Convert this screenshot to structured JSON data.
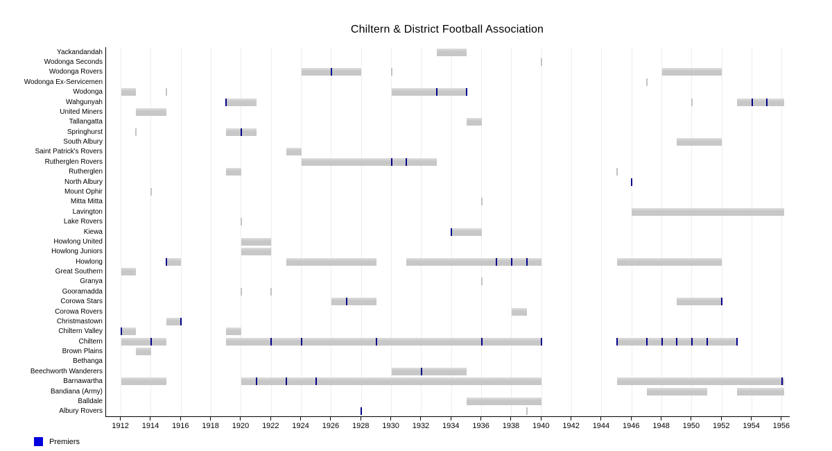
{
  "title": "Chiltern & District Football Association",
  "legend": {
    "label": "Premiers",
    "swatch_color": "#0000dd"
  },
  "colors": {
    "bar": "#c7c7c7",
    "bar_highlight": "#dedede",
    "premier_tick": "#00008b",
    "stint_tick": "#b9b9b9",
    "gridline": "#ededed",
    "axis": "#000000",
    "background": "#ffffff"
  },
  "chart_data": {
    "type": "gantt",
    "title": "Chiltern & District Football Association",
    "xlabel": "",
    "ylabel": "",
    "grid": "vertical-light",
    "legend_position": "bottom-left",
    "legend_entries": [
      "Premiers"
    ],
    "x_range": [
      1911,
      1956.5
    ],
    "x_ticks": [
      1912,
      1914,
      1916,
      1918,
      1920,
      1922,
      1924,
      1926,
      1928,
      1930,
      1932,
      1934,
      1936,
      1938,
      1940,
      1942,
      1944,
      1946,
      1948,
      1950,
      1952,
      1954,
      1956
    ],
    "teams": [
      {
        "name": "Yackandandah",
        "bars": [
          [
            1933,
            1935
          ]
        ],
        "premiers": [],
        "stints": []
      },
      {
        "name": "Wodonga Seconds",
        "bars": [],
        "premiers": [],
        "stints": [
          1940
        ]
      },
      {
        "name": "Wodonga Rovers",
        "bars": [
          [
            1924,
            1928
          ],
          [
            1948,
            1952
          ]
        ],
        "premiers": [
          1926
        ],
        "stints": [
          1930
        ]
      },
      {
        "name": "Wodonga Ex-Servicemen",
        "bars": [],
        "premiers": [],
        "stints": [
          1947
        ]
      },
      {
        "name": "Wodonga",
        "bars": [
          [
            1912,
            1913
          ],
          [
            1930,
            1935
          ]
        ],
        "premiers": [
          1933,
          1935
        ],
        "stints": [
          1915
        ]
      },
      {
        "name": "Wahgunyah",
        "bars": [
          [
            1919,
            1921
          ],
          [
            1953,
            1956.15
          ]
        ],
        "premiers": [
          1919,
          1954,
          1955
        ],
        "stints": [
          1950
        ]
      },
      {
        "name": "United Miners",
        "bars": [
          [
            1913,
            1915
          ]
        ],
        "premiers": [],
        "stints": []
      },
      {
        "name": "Tallangatta",
        "bars": [
          [
            1935,
            1936
          ]
        ],
        "premiers": [],
        "stints": []
      },
      {
        "name": "Springhurst",
        "bars": [
          [
            1919,
            1921
          ]
        ],
        "premiers": [
          1920
        ],
        "stints": [
          1913
        ]
      },
      {
        "name": "South Albury",
        "bars": [
          [
            1949,
            1952
          ]
        ],
        "premiers": [],
        "stints": []
      },
      {
        "name": "Saint Patrick's Rovers",
        "bars": [
          [
            1923,
            1924
          ]
        ],
        "premiers": [],
        "stints": []
      },
      {
        "name": "Rutherglen Rovers",
        "bars": [
          [
            1924,
            1933
          ]
        ],
        "premiers": [
          1930,
          1931
        ],
        "stints": []
      },
      {
        "name": "Rutherglen",
        "bars": [
          [
            1919,
            1920
          ]
        ],
        "premiers": [],
        "stints": [
          1945
        ]
      },
      {
        "name": "North Albury",
        "bars": [],
        "premiers": [
          1946
        ],
        "stints": []
      },
      {
        "name": "Mount Ophir",
        "bars": [],
        "premiers": [],
        "stints": [
          1914
        ]
      },
      {
        "name": "Mitta Mitta",
        "bars": [],
        "premiers": [],
        "stints": [
          1936
        ]
      },
      {
        "name": "Lavington",
        "bars": [
          [
            1946,
            1956.15
          ]
        ],
        "premiers": [],
        "stints": []
      },
      {
        "name": "Lake Rovers",
        "bars": [],
        "premiers": [],
        "stints": [
          1920
        ]
      },
      {
        "name": "Kiewa",
        "bars": [
          [
            1934,
            1936
          ]
        ],
        "premiers": [
          1934
        ],
        "stints": []
      },
      {
        "name": "Howlong United",
        "bars": [
          [
            1920,
            1922
          ]
        ],
        "premiers": [],
        "stints": []
      },
      {
        "name": "Howlong Juniors",
        "bars": [
          [
            1920,
            1922
          ]
        ],
        "premiers": [],
        "stints": []
      },
      {
        "name": "Howlong",
        "bars": [
          [
            1915,
            1916
          ],
          [
            1923,
            1929
          ],
          [
            1931,
            1940
          ],
          [
            1945,
            1952
          ]
        ],
        "premiers": [
          1915,
          1937,
          1938,
          1939
        ],
        "stints": []
      },
      {
        "name": "Great Southern",
        "bars": [
          [
            1912,
            1913
          ]
        ],
        "premiers": [],
        "stints": []
      },
      {
        "name": "Granya",
        "bars": [],
        "premiers": [],
        "stints": [
          1936
        ]
      },
      {
        "name": "Gooramadda",
        "bars": [],
        "premiers": [],
        "stints": [
          1920,
          1922
        ]
      },
      {
        "name": "Corowa Stars",
        "bars": [
          [
            1926,
            1929
          ],
          [
            1949,
            1952
          ]
        ],
        "premiers": [
          1927,
          1952
        ],
        "stints": []
      },
      {
        "name": "Corowa Rovers",
        "bars": [
          [
            1938,
            1939
          ]
        ],
        "premiers": [],
        "stints": []
      },
      {
        "name": "Christmastown",
        "bars": [
          [
            1915,
            1916
          ]
        ],
        "premiers": [
          1916
        ],
        "stints": []
      },
      {
        "name": "Chiltern Valley",
        "bars": [
          [
            1912,
            1913
          ],
          [
            1919,
            1920
          ]
        ],
        "premiers": [
          1912
        ],
        "stints": []
      },
      {
        "name": "Chiltern",
        "bars": [
          [
            1912,
            1915
          ],
          [
            1919,
            1940
          ],
          [
            1945,
            1953
          ]
        ],
        "premiers": [
          1914,
          1922,
          1924,
          1929,
          1936,
          1940,
          1945,
          1947,
          1948,
          1949,
          1950,
          1951,
          1953
        ],
        "stints": []
      },
      {
        "name": "Brown Plains",
        "bars": [
          [
            1913,
            1914
          ]
        ],
        "premiers": [],
        "stints": []
      },
      {
        "name": "Bethanga",
        "bars": [],
        "premiers": [],
        "stints": []
      },
      {
        "name": "Beechworth Wanderers",
        "bars": [
          [
            1930,
            1935
          ]
        ],
        "premiers": [
          1932
        ],
        "stints": []
      },
      {
        "name": "Barnawartha",
        "bars": [
          [
            1912,
            1915
          ],
          [
            1920,
            1940
          ],
          [
            1945,
            1956.15
          ]
        ],
        "premiers": [
          1921,
          1923,
          1925,
          1956
        ],
        "stints": []
      },
      {
        "name": "Bandiana (Army)",
        "bars": [
          [
            1947,
            1951
          ],
          [
            1953,
            1956.15
          ]
        ],
        "premiers": [],
        "stints": []
      },
      {
        "name": "Balldale",
        "bars": [
          [
            1935,
            1940
          ]
        ],
        "premiers": [],
        "stints": []
      },
      {
        "name": "Albury Rovers",
        "bars": [],
        "premiers": [
          1928
        ],
        "stints": [
          1939
        ]
      }
    ]
  }
}
